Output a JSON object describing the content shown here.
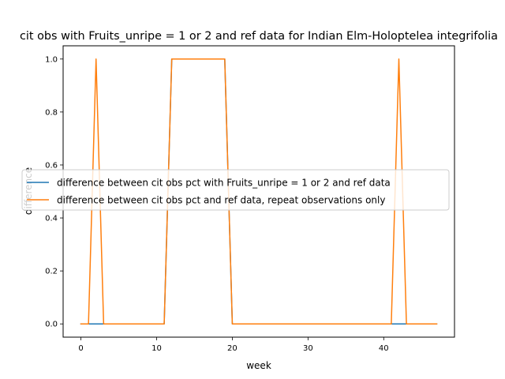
{
  "chart_data": {
    "type": "line",
    "title": "cit obs with Fruits_unripe = 1 or 2 and ref data for Indian Elm-Holoptelea integrifolia",
    "xlabel": "week",
    "ylabel": "difference",
    "xlim": [
      -2.35,
      49.35
    ],
    "ylim": [
      -0.05,
      1.05
    ],
    "x_ticks": [
      0,
      10,
      20,
      30,
      40
    ],
    "y_ticks": [
      0.0,
      0.2,
      0.4,
      0.6,
      0.8,
      1.0
    ],
    "x_tick_labels": [
      "0",
      "10",
      "20",
      "30",
      "40"
    ],
    "y_tick_labels": [
      "0.0",
      "0.2",
      "0.4",
      "0.6",
      "0.8",
      "1.0"
    ],
    "grid": false,
    "legend_position": "center",
    "series": [
      {
        "name": "difference between cit obs pct with Fruits_unripe = 1 or 2 and ref data",
        "color": "#1f77b4",
        "x": [
          0,
          1,
          2,
          3,
          4,
          5,
          6,
          7,
          8,
          9,
          10,
          11,
          12,
          13,
          14,
          15,
          16,
          17,
          18,
          19,
          20,
          21,
          22,
          23,
          24,
          25,
          26,
          27,
          28,
          29,
          30,
          31,
          32,
          33,
          34,
          35,
          36,
          37,
          38,
          39,
          40,
          41,
          42,
          43,
          44,
          45,
          46,
          47
        ],
        "values": [
          0,
          0,
          0,
          0,
          0,
          0,
          0,
          0,
          0,
          0,
          0,
          0,
          1,
          1,
          1,
          1,
          1,
          1,
          1,
          1,
          0,
          0,
          0,
          0,
          0,
          0,
          0,
          0,
          0,
          0,
          0,
          0,
          0,
          0,
          0,
          0,
          0,
          0,
          0,
          0,
          0,
          0,
          0,
          0,
          0,
          0,
          0,
          0
        ]
      },
      {
        "name": "difference between cit obs pct and ref data, repeat observations only",
        "color": "#ff7f0e",
        "x": [
          0,
          1,
          2,
          3,
          4,
          5,
          6,
          7,
          8,
          9,
          10,
          11,
          12,
          13,
          14,
          15,
          16,
          17,
          18,
          19,
          20,
          21,
          22,
          23,
          24,
          25,
          26,
          27,
          28,
          29,
          30,
          31,
          32,
          33,
          34,
          35,
          36,
          37,
          38,
          39,
          40,
          41,
          42,
          43,
          44,
          45,
          46,
          47
        ],
        "values": [
          0,
          0,
          1,
          0,
          0,
          0,
          0,
          0,
          0,
          0,
          0,
          0,
          1,
          1,
          1,
          1,
          1,
          1,
          1,
          1,
          0,
          0,
          0,
          0,
          0,
          0,
          0,
          0,
          0,
          0,
          0,
          0,
          0,
          0,
          0,
          0,
          0,
          0,
          0,
          0,
          0,
          0,
          1,
          0,
          0,
          0,
          0,
          0
        ]
      }
    ]
  }
}
